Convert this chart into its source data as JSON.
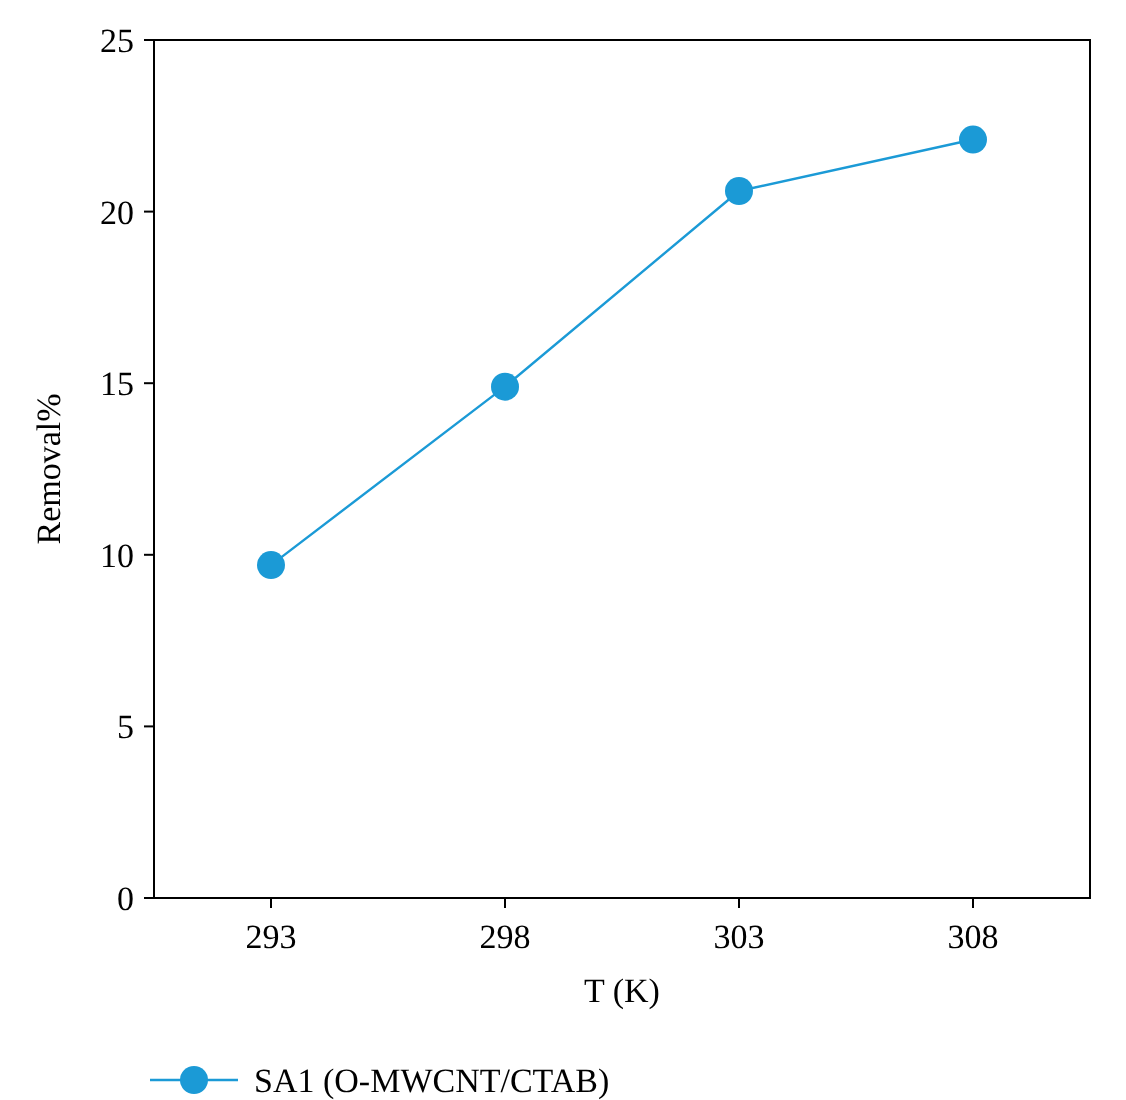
{
  "chart_data": {
    "type": "line",
    "xlabel": "T (K)",
    "ylabel": "Removal%",
    "categories": [
      "293",
      "298",
      "303",
      "308"
    ],
    "series": [
      {
        "name": "SA1 (O-MWCNT/CTAB)",
        "color": "#1b9ad6",
        "values": [
          9.7,
          14.9,
          20.6,
          22.1
        ]
      }
    ],
    "ylim": [
      0,
      25
    ],
    "yticks": [
      0,
      5,
      10,
      15,
      20,
      25
    ],
    "grid": false,
    "legend": "bottom left",
    "marker": "circle",
    "line_style": "solid"
  }
}
